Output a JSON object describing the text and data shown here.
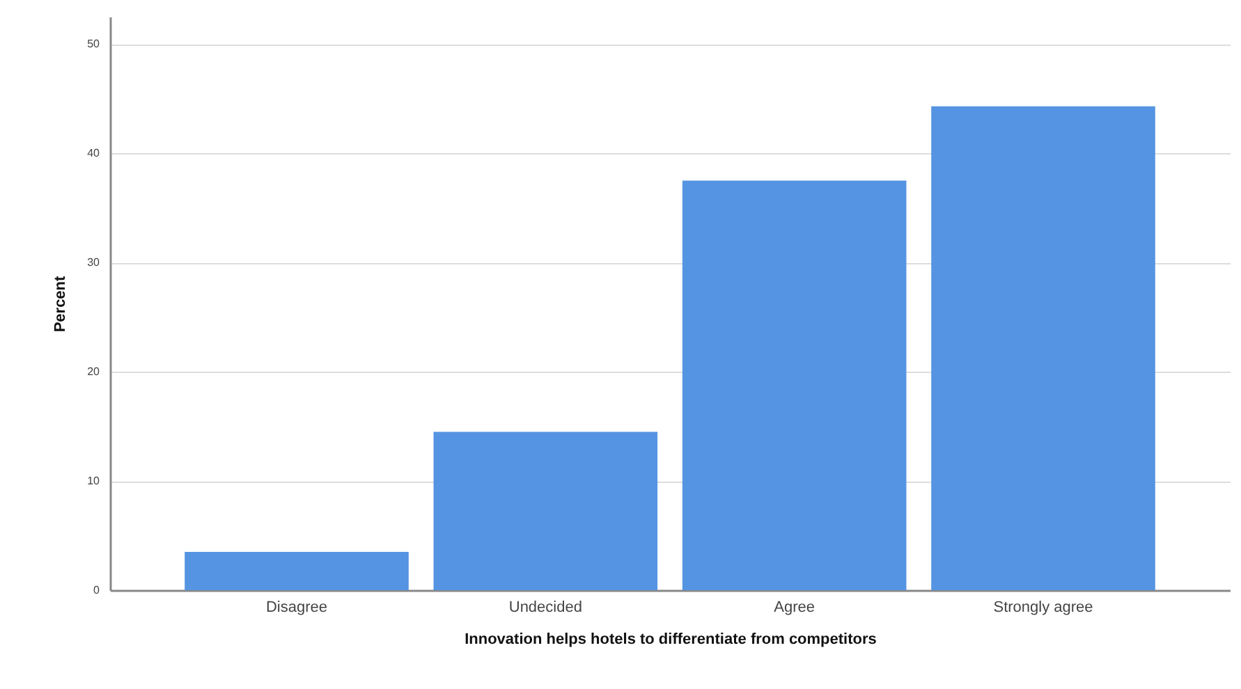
{
  "chart_data": {
    "type": "bar",
    "xlabel": "Innovation helps hotels to differentiate from competitors",
    "ylabel": "Percent",
    "categories": [
      "Disagree",
      "Undecided",
      "Agree",
      "Strongly agree"
    ],
    "values": [
      3.5,
      14.5,
      37.5,
      44.3
    ],
    "color": "#5594e2",
    "ylim": [
      0,
      52.5
    ],
    "yticks": [
      0,
      10,
      20,
      30,
      40,
      50
    ],
    "grid": "y"
  }
}
